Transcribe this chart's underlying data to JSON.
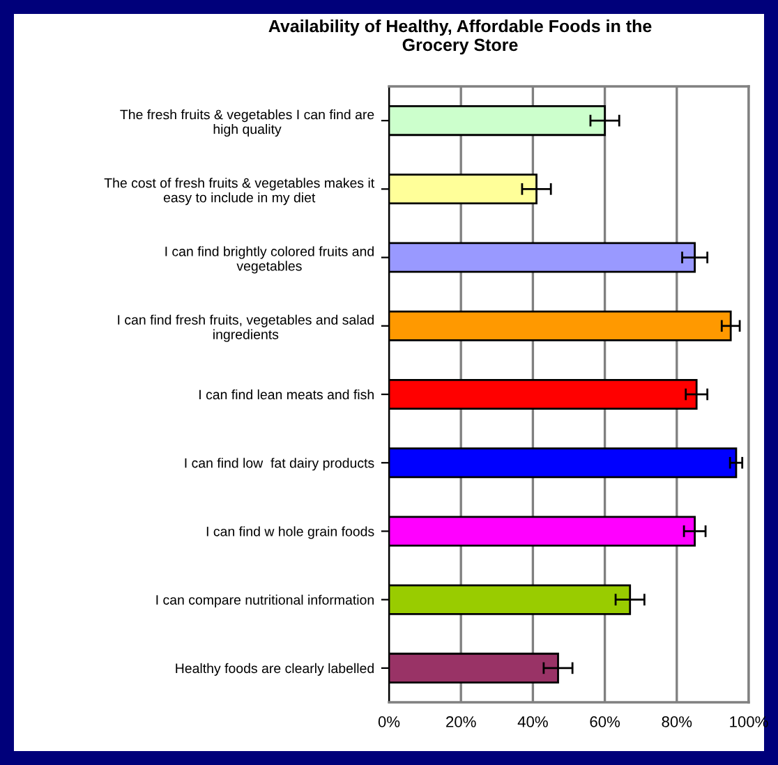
{
  "chart_data": {
    "type": "bar",
    "orientation": "horizontal",
    "title": "Availability of Healthy, Affordable Foods in the Grocery Store",
    "categories": [
      "The fresh fruits & vegetables I can find are high quality",
      "The cost of fresh fruits & vegetables makes it easy to include in my diet",
      "I can find brightly colored fruits and vegetables",
      "I can find fresh fruits, vegetables and salad ingredients",
      "I can find lean meats and fish",
      "I can find low  fat dairy products",
      "I can find w hole grain foods",
      "I can compare nutritional information",
      "Healthy foods are clearly labelled"
    ],
    "values": [
      60,
      41,
      85,
      95,
      85.5,
      96.5,
      85,
      67,
      47
    ],
    "errors": [
      4,
      4,
      3.5,
      2.5,
      3,
      1.7,
      3,
      4,
      4
    ],
    "colors": [
      "#ccffcc",
      "#ffff99",
      "#9999ff",
      "#ff9900",
      "#ff0000",
      "#0000ff",
      "#ff00ff",
      "#99cc00",
      "#993366"
    ],
    "xlim": [
      0,
      100
    ],
    "xticks": [
      {
        "value": 0,
        "label": "0%"
      },
      {
        "value": 20,
        "label": "20%"
      },
      {
        "value": 40,
        "label": "40%"
      },
      {
        "value": 60,
        "label": "60%"
      },
      {
        "value": 80,
        "label": "80%"
      },
      {
        "value": 100,
        "label": "100%"
      }
    ],
    "grid": "x"
  }
}
